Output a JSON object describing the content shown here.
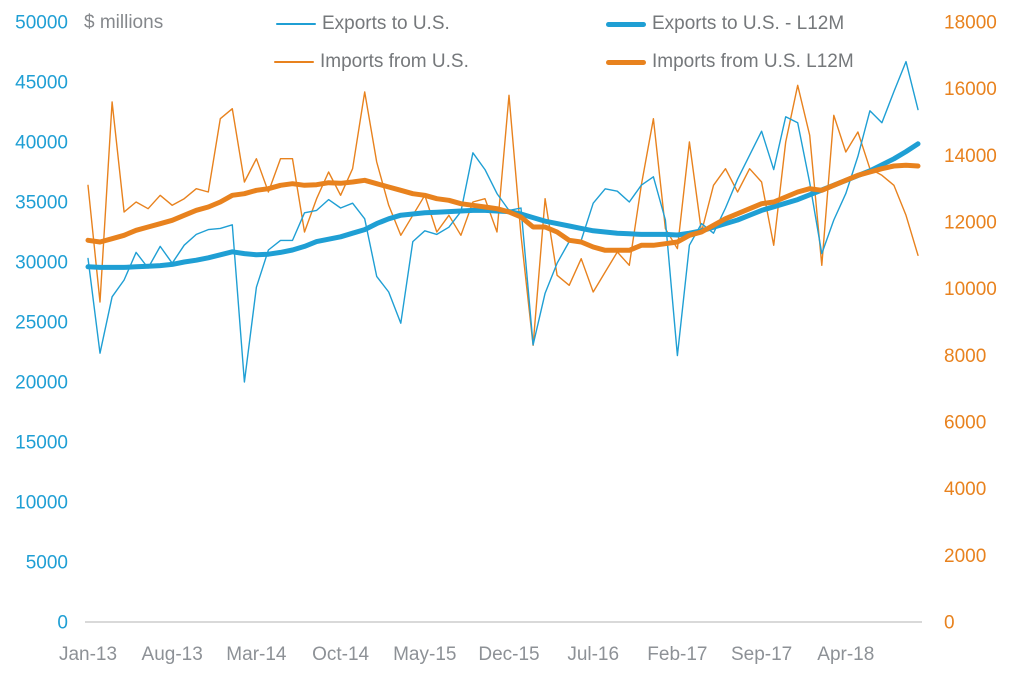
{
  "colors": {
    "blue": "#1f9fd4",
    "orange": "#e8821e",
    "text_gray": "#8d9196",
    "legend_gray": "#75787b",
    "unit_gray": "#85888c",
    "axis_line": "#d9d9d9"
  },
  "chart": {
    "unit_label": "$ millions",
    "legend": [
      {
        "label": "Exports to U.S.",
        "series": "exports-monthly",
        "style": "thin",
        "color": "#1f9fd4"
      },
      {
        "label": "Imports from U.S.",
        "series": "imports-monthly",
        "style": "thin",
        "color": "#e8821e"
      },
      {
        "label": "Exports to U.S. - L12M",
        "series": "exports-l12m",
        "style": "thick",
        "color": "#1f9fd4"
      },
      {
        "label": "Imports from U.S. L12M",
        "series": "imports-l12m",
        "style": "thick",
        "color": "#e8821e"
      }
    ]
  },
  "chart_data": {
    "type": "line",
    "title": "",
    "unit": "$ millions",
    "grid": false,
    "legend_position": "top",
    "x": [
      "Jan-13",
      "Feb-13",
      "Mar-13",
      "Apr-13",
      "May-13",
      "Jun-13",
      "Jul-13",
      "Aug-13",
      "Sep-13",
      "Oct-13",
      "Nov-13",
      "Dec-13",
      "Jan-14",
      "Feb-14",
      "Mar-14",
      "Apr-14",
      "May-14",
      "Jun-14",
      "Jul-14",
      "Aug-14",
      "Sep-14",
      "Oct-14",
      "Nov-14",
      "Dec-14",
      "Jan-15",
      "Feb-15",
      "Mar-15",
      "Apr-15",
      "May-15",
      "Jun-15",
      "Jul-15",
      "Aug-15",
      "Sep-15",
      "Oct-15",
      "Nov-15",
      "Dec-15",
      "Jan-16",
      "Feb-16",
      "Mar-16",
      "Apr-16",
      "May-16",
      "Jun-16",
      "Jul-16",
      "Aug-16",
      "Sep-16",
      "Oct-16",
      "Nov-16",
      "Dec-16",
      "Jan-17",
      "Feb-17",
      "Mar-17",
      "Apr-17",
      "May-17",
      "Jun-17",
      "Jul-17",
      "Aug-17",
      "Sep-17",
      "Oct-17",
      "Nov-17",
      "Dec-17",
      "Jan-18",
      "Feb-18",
      "Mar-18",
      "Apr-18",
      "May-18",
      "Jun-18",
      "Jul-18",
      "Aug-18",
      "Sep-18",
      "Oct-18"
    ],
    "x_tick_indices": [
      0,
      7,
      14,
      21,
      28,
      35,
      42,
      49,
      56,
      63
    ],
    "axes": {
      "left": {
        "min": 0,
        "max": 50000,
        "step": 5000,
        "color": "#1f9fd4",
        "ticks": [
          50000,
          45000,
          40000,
          35000,
          30000,
          25000,
          20000,
          15000,
          10000,
          5000,
          0
        ]
      },
      "right": {
        "min": 0,
        "max": 18000,
        "step": 2000,
        "color": "#e8821e",
        "ticks": [
          18000,
          16000,
          14000,
          12000,
          10000,
          8000,
          6000,
          4000,
          2000,
          0
        ]
      }
    },
    "series": [
      {
        "id": "imports-monthly",
        "name": "Imports from U.S.",
        "axis": "right",
        "color": "#e8821e",
        "width": 1.4,
        "values": [
          13100,
          9600,
          15600,
          12300,
          12600,
          12400,
          12800,
          12500,
          12700,
          13000,
          12900,
          15100,
          15400,
          13200,
          13900,
          12900,
          13900,
          13900,
          11700,
          12700,
          13500,
          12800,
          13600,
          15900,
          13800,
          12500,
          11600,
          12200,
          12800,
          11700,
          12200,
          11600,
          12600,
          12700,
          11700,
          15800,
          11600,
          8300,
          12700,
          10400,
          10100,
          10900,
          9900,
          10500,
          11100,
          10700,
          13100,
          15100,
          11800,
          11200,
          14400,
          11700,
          13100,
          13600,
          12900,
          13600,
          13200,
          11300,
          14400,
          16100,
          14600,
          10700,
          15200,
          14100,
          14700,
          13600,
          13400,
          13100,
          12200,
          11000
        ]
      },
      {
        "id": "exports-monthly",
        "name": "Exports to U.S.",
        "axis": "left",
        "color": "#1f9fd4",
        "width": 1.4,
        "values": [
          30300,
          22400,
          27100,
          28500,
          30800,
          29500,
          31300,
          29900,
          31400,
          32300,
          32700,
          32800,
          33100,
          20000,
          27900,
          31000,
          31800,
          31800,
          34100,
          34300,
          35200,
          34500,
          34900,
          33600,
          28800,
          27500,
          24900,
          31700,
          32600,
          32300,
          32900,
          34200,
          39100,
          37700,
          35700,
          34300,
          34500,
          23100,
          27400,
          29900,
          31700,
          31800,
          34900,
          36100,
          35900,
          35000,
          36400,
          37100,
          33500,
          22200,
          31400,
          33200,
          32400,
          34500,
          36900,
          38900,
          40900,
          37700,
          42100,
          41600,
          36600,
          30700,
          33500,
          35700,
          38800,
          42600,
          41600,
          44200,
          46700,
          42700
        ]
      },
      {
        "id": "exports-l12m",
        "name": "Exports to U.S. - L12M",
        "axis": "left",
        "color": "#1f9fd4",
        "width": 5,
        "values": [
          29600,
          29550,
          29550,
          29550,
          29600,
          29650,
          29700,
          29800,
          30000,
          30150,
          30350,
          30600,
          30850,
          30700,
          30600,
          30650,
          30800,
          31000,
          31300,
          31700,
          31900,
          32100,
          32400,
          32700,
          33200,
          33600,
          33900,
          34000,
          34100,
          34150,
          34200,
          34250,
          34300,
          34300,
          34250,
          34200,
          34000,
          33700,
          33400,
          33200,
          33000,
          32800,
          32600,
          32500,
          32400,
          32350,
          32300,
          32300,
          32300,
          32250,
          32400,
          32600,
          32900,
          33200,
          33500,
          33900,
          34300,
          34600,
          34900,
          35200,
          35600,
          36000,
          36400,
          36800,
          37200,
          37600,
          38100,
          38600,
          39200,
          39850
        ]
      },
      {
        "id": "imports-l12m",
        "name": "Imports from U.S. L12M",
        "axis": "right",
        "color": "#e8821e",
        "width": 5,
        "values": [
          11450,
          11400,
          11500,
          11600,
          11750,
          11850,
          11950,
          12050,
          12200,
          12350,
          12450,
          12600,
          12800,
          12850,
          12950,
          13000,
          13100,
          13150,
          13100,
          13120,
          13180,
          13160,
          13200,
          13250,
          13150,
          13050,
          12950,
          12850,
          12800,
          12700,
          12650,
          12550,
          12500,
          12450,
          12400,
          12300,
          12150,
          11850,
          11850,
          11700,
          11450,
          11400,
          11250,
          11150,
          11150,
          11150,
          11300,
          11300,
          11350,
          11400,
          11600,
          11700,
          11900,
          12100,
          12250,
          12400,
          12550,
          12600,
          12750,
          12900,
          13000,
          12950,
          13100,
          13250,
          13400,
          13500,
          13600,
          13680,
          13700,
          13680
        ]
      }
    ]
  }
}
